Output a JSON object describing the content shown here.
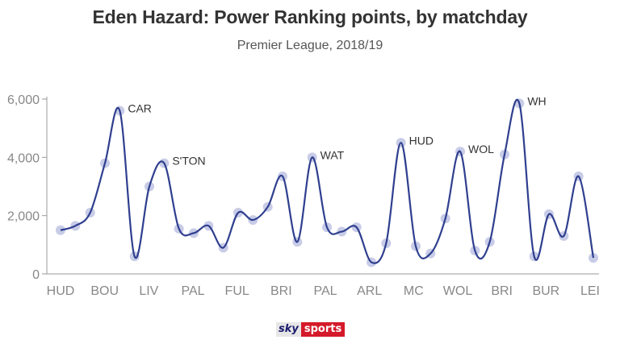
{
  "chart_data": {
    "type": "line",
    "title": "Eden Hazard: Power Ranking points, by matchday",
    "subtitle": "Premier League, 2018/19",
    "xlabel": "",
    "ylabel": "",
    "ylim": [
      0,
      6000
    ],
    "yticks": [
      "0",
      "2,000",
      "4,000",
      "6,000"
    ],
    "grid": false,
    "colors": {
      "line": "#2f3f8f",
      "marker": "#c5c9e6"
    },
    "x_tick_labels": [
      "HUD",
      "BOU",
      "LIV",
      "PAL",
      "FUL",
      "BRI",
      "PAL",
      "ARL",
      "MC",
      "WOL",
      "BRI",
      "BUR",
      "LEI"
    ],
    "series": [
      {
        "values": [
          1500,
          1650,
          2100,
          3800,
          5600,
          600,
          3000,
          3800,
          1550,
          1400,
          1650,
          900,
          2100,
          1850,
          2300,
          3350,
          1100,
          4000,
          1600,
          1450,
          1600,
          400,
          1050,
          4500,
          950,
          700,
          1900,
          4200,
          800,
          1100,
          4100,
          5850,
          600,
          2050,
          1300,
          3350,
          550
        ]
      }
    ],
    "annotations": [
      {
        "index": 4,
        "text": "CAR"
      },
      {
        "index": 7,
        "text": "S'TON"
      },
      {
        "index": 17,
        "text": "WAT"
      },
      {
        "index": 23,
        "text": "HUD"
      },
      {
        "index": 27,
        "text": "WOL"
      },
      {
        "index": 31,
        "text": "WH"
      }
    ]
  },
  "branding": {
    "logo_sky": "sky",
    "logo_sports": "sports"
  }
}
